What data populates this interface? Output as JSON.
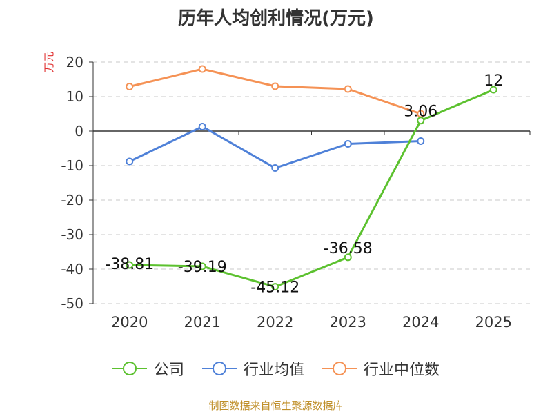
{
  "chart_data": {
    "type": "line",
    "title": "历年人均创利情况(万元)",
    "ylabel": "万元",
    "xlabel": "",
    "categories": [
      "2020",
      "2021",
      "2022",
      "2023",
      "2024",
      "2025"
    ],
    "ylim": [
      -50,
      20
    ],
    "yticks": [
      20,
      10,
      0,
      -10,
      -20,
      -30,
      -40,
      -50
    ],
    "grid": true,
    "legend_position": "bottom",
    "series": [
      {
        "name": "公司",
        "color": "#5cc12f",
        "values": [
          -38.81,
          -39.19,
          -45.12,
          -36.58,
          3.06,
          12
        ],
        "labels": [
          "-38.81",
          "-39.19",
          "-45.12",
          "-36.58",
          "3.06",
          "12"
        ]
      },
      {
        "name": "行业均值",
        "color": "#4f81d8",
        "values": [
          -8.8,
          1.3,
          -10.7,
          -3.7,
          -2.9,
          null
        ]
      },
      {
        "name": "行业中位数",
        "color": "#f59255",
        "values": [
          12.9,
          18.0,
          13.0,
          12.2,
          5.0,
          null
        ]
      }
    ]
  },
  "footer": "制图数据来自恒生聚源数据库"
}
